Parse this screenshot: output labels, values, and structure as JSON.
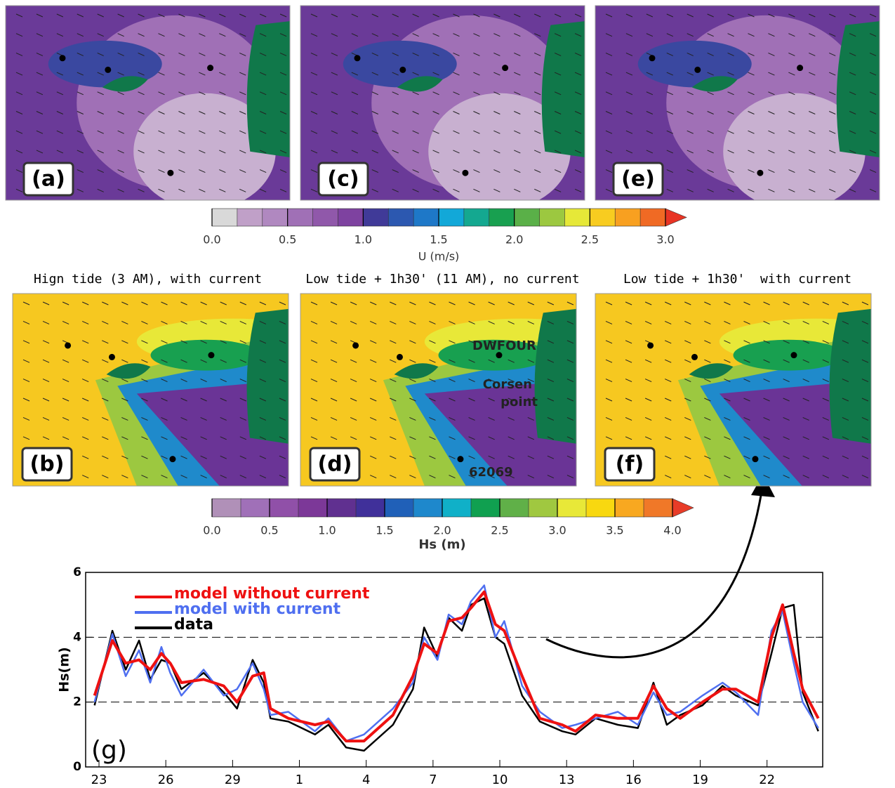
{
  "panels_top": [
    {
      "label": "(a)"
    },
    {
      "label": "(c)"
    },
    {
      "label": "(e)"
    }
  ],
  "colorbar_u": {
    "label": "U (m/s)",
    "lim": [
      0,
      3
    ],
    "ticks": [
      {
        "value": 0,
        "label": "0.0"
      },
      {
        "value": 0.5,
        "label": "0.5"
      },
      {
        "value": 1,
        "label": "1.0"
      },
      {
        "value": 1.5,
        "label": "1.5"
      },
      {
        "value": 2,
        "label": "2.0"
      },
      {
        "value": 2.5,
        "label": "2.5"
      },
      {
        "value": 3,
        "label": "3.0"
      }
    ],
    "colors": [
      "#d9d9d9",
      "#c0a0c8",
      "#b088c0",
      "#a070b6",
      "#9058aa",
      "#7e42a0",
      "#403a98",
      "#2c58b0",
      "#1e78c8",
      "#12a8d8",
      "#14a890",
      "#18a050",
      "#5ab048",
      "#9cc840",
      "#e6e838",
      "#f8cc20",
      "#f8a020",
      "#f06a24"
    ],
    "over_color": "#e83424"
  },
  "panels_bottom": [
    {
      "title": "Hign tide (3 AM), with current",
      "label": "(b)",
      "stations": []
    },
    {
      "title": "Low tide + 1h30' (11 AM), no current",
      "label": "(d)",
      "stations": [
        "DWFOUR",
        "Corsen",
        "point",
        "62069"
      ]
    },
    {
      "title": "Low tide + 1h30'  with current",
      "label": "(f)",
      "stations": []
    }
  ],
  "colorbar_hs": {
    "label": "Hs (m)",
    "lim": [
      0,
      4
    ],
    "ticks": [
      {
        "value": 0,
        "label": "0.0"
      },
      {
        "value": 0.5,
        "label": "0.5"
      },
      {
        "value": 1,
        "label": "1.0"
      },
      {
        "value": 1.5,
        "label": "1.5"
      },
      {
        "value": 2,
        "label": "2.0"
      },
      {
        "value": 2.5,
        "label": "2.5"
      },
      {
        "value": 3,
        "label": "3.0"
      },
      {
        "value": 3.5,
        "label": "3.5"
      },
      {
        "value": 4,
        "label": "4.0"
      }
    ],
    "colors": [
      "#b090b8",
      "#a070b8",
      "#9050a8",
      "#7c3898",
      "#603090",
      "#40309a",
      "#2060b8",
      "#1e88cc",
      "#10b0c8",
      "#10a050",
      "#60b048",
      "#a0c840",
      "#e8e838",
      "#f8d810",
      "#f8a820",
      "#f07828"
    ],
    "over_color": "#e83c28"
  },
  "chart_data": {
    "type": "line",
    "panel_label": "(g)",
    "ylabel": "Hs(m)",
    "x": [
      -0.2,
      0.6,
      1.2,
      1.8,
      2.3,
      2.8,
      3.2,
      3.7,
      4.7,
      5.6,
      6.2,
      6.9,
      7.4,
      7.7,
      8.5,
      9.7,
      10.3,
      11.1,
      11.9,
      13.2,
      14.1,
      14.6,
      15.2,
      15.7,
      16.3,
      16.7,
      17.3,
      17.8,
      18.2,
      19.0,
      19.8,
      20.8,
      21.4,
      22.3,
      23.3,
      24.2,
      24.9,
      25.5,
      26.1,
      27.1,
      28.0,
      28.6,
      29.6,
      30.2,
      30.7,
      31.2,
      31.6,
      32.3
    ],
    "series": [
      {
        "name": "model without current",
        "color": "#ee1111",
        "width": 4,
        "values": [
          2.2,
          3.9,
          3.2,
          3.3,
          3.0,
          3.5,
          3.2,
          2.6,
          2.7,
          2.5,
          2.0,
          2.8,
          2.9,
          1.8,
          1.5,
          1.3,
          1.4,
          0.8,
          0.8,
          1.6,
          2.8,
          3.8,
          3.5,
          4.5,
          4.6,
          4.9,
          5.4,
          4.4,
          4.2,
          2.8,
          1.5,
          1.3,
          1.1,
          1.6,
          1.5,
          1.5,
          2.5,
          1.8,
          1.5,
          2.0,
          2.4,
          2.4,
          2.0,
          4.0,
          5.0,
          3.5,
          2.4,
          1.5
        ]
      },
      {
        "name": "model with current",
        "color": "#4f6ff0",
        "width": 2.5,
        "values": [
          2.0,
          4.1,
          2.8,
          3.6,
          2.6,
          3.7,
          2.9,
          2.2,
          3.0,
          2.2,
          2.4,
          3.2,
          2.4,
          1.6,
          1.7,
          1.1,
          1.5,
          0.8,
          1.0,
          1.8,
          2.6,
          4.0,
          3.3,
          4.7,
          4.4,
          5.1,
          5.6,
          4.0,
          4.5,
          2.5,
          1.7,
          1.2,
          1.3,
          1.5,
          1.7,
          1.3,
          2.3,
          1.6,
          1.7,
          2.2,
          2.6,
          2.3,
          1.6,
          4.2,
          4.8,
          3.2,
          2.0,
          1.2
        ]
      },
      {
        "name": "data",
        "color": "#000000",
        "width": 2.5,
        "values": [
          1.9,
          4.2,
          3.0,
          3.9,
          2.7,
          3.3,
          3.2,
          2.4,
          2.9,
          2.3,
          1.8,
          3.3,
          2.6,
          1.5,
          1.4,
          1.0,
          1.3,
          0.6,
          0.5,
          1.3,
          2.4,
          4.3,
          3.4,
          4.6,
          4.2,
          5.0,
          5.2,
          4.0,
          3.8,
          2.2,
          1.4,
          1.1,
          1.0,
          1.5,
          1.3,
          1.2,
          2.6,
          1.3,
          1.6,
          1.9,
          2.5,
          2.2,
          1.9,
          3.5,
          4.9,
          5.0,
          2.3,
          1.1
        ]
      }
    ],
    "xlim": [
      -0.6,
      32.5
    ],
    "xticks": [
      {
        "value": 0,
        "label": "23"
      },
      {
        "value": 3,
        "label": "26"
      },
      {
        "value": 6,
        "label": "29"
      },
      {
        "value": 9,
        "label": "1"
      },
      {
        "value": 12,
        "label": "4"
      },
      {
        "value": 15,
        "label": "7"
      },
      {
        "value": 18,
        "label": "10"
      },
      {
        "value": 21,
        "label": "13"
      },
      {
        "value": 24,
        "label": "16"
      },
      {
        "value": 27,
        "label": "19"
      },
      {
        "value": 30,
        "label": "22"
      }
    ],
    "ylim": [
      0,
      6
    ],
    "yticks": [
      0,
      2,
      4,
      6
    ],
    "grid": true
  }
}
